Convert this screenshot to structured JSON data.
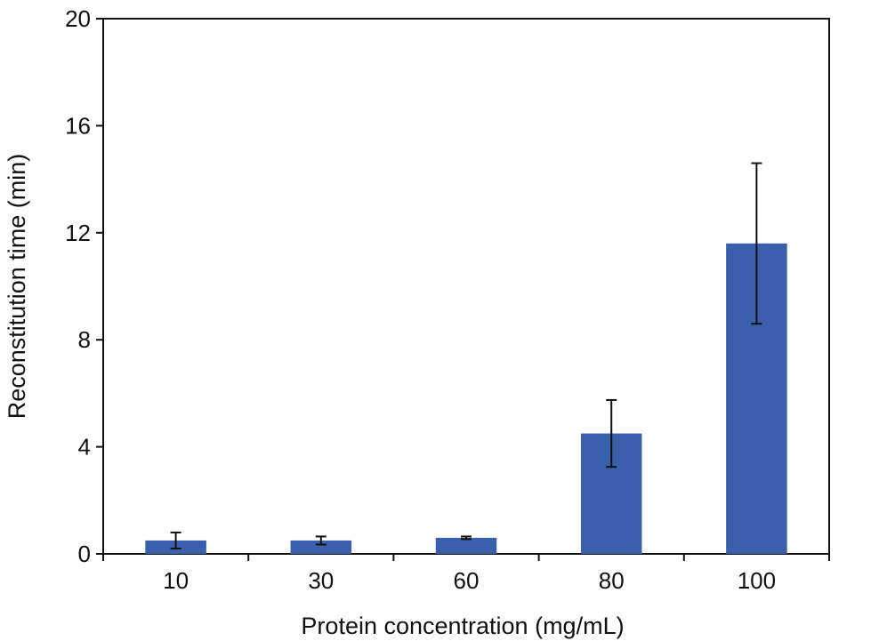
{
  "chart_data": {
    "type": "bar",
    "title": "",
    "xlabel": "Protein concentration (mg/mL)",
    "ylabel": "Reconstitution time (min)",
    "categories": [
      "10",
      "30",
      "60",
      "80",
      "100"
    ],
    "values": [
      0.5,
      0.5,
      0.6,
      4.5,
      11.6
    ],
    "error": [
      0.3,
      0.15,
      0.05,
      1.25,
      3.0
    ],
    "ylim": [
      0,
      20
    ],
    "yticks": [
      0,
      4,
      8,
      12,
      16,
      20
    ],
    "grid": false,
    "legend": "none",
    "bar_color": "#3a60ad"
  }
}
